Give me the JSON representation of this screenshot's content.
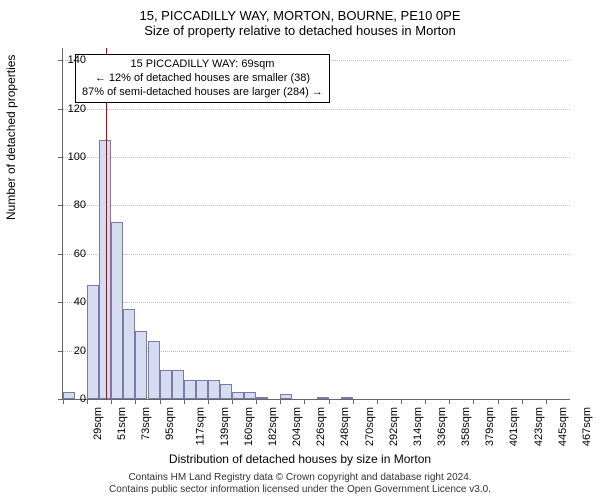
{
  "chart": {
    "type": "histogram",
    "title_main": "15, PICCADILLY WAY, MORTON, BOURNE, PE10 0PE",
    "title_sub": "Size of property relative to detached houses in Morton",
    "y_axis_title": "Number of detached properties",
    "x_axis_title": "Distribution of detached houses by size in Morton",
    "ylim": [
      0,
      145
    ],
    "yticks": [
      0,
      20,
      40,
      60,
      80,
      100,
      120,
      140
    ],
    "xtick_labels": [
      "29sqm",
      "51sqm",
      "73sqm",
      "95sqm",
      "117sqm",
      "139sqm",
      "160sqm",
      "182sqm",
      "204sqm",
      "226sqm",
      "248sqm",
      "270sqm",
      "292sqm",
      "314sqm",
      "336sqm",
      "358sqm",
      "379sqm",
      "401sqm",
      "423sqm",
      "445sqm",
      "467sqm"
    ],
    "bar_values": [
      3,
      0,
      47,
      107,
      73,
      37,
      28,
      24,
      12,
      12,
      8,
      8,
      8,
      6,
      3,
      3,
      1,
      0,
      2,
      0,
      0,
      1,
      0,
      1,
      0,
      0,
      0,
      0,
      0,
      0,
      0,
      0,
      0,
      0,
      0,
      0,
      0,
      0,
      0,
      0,
      0,
      0
    ],
    "bar_fill": "#d6dcf0",
    "bar_border": "#7a7aa8",
    "marker_bin_index": 3.6,
    "marker_color": "#cc0000",
    "annotation": {
      "line1": "15 PICCADILLY WAY: 69sqm",
      "line2": "← 12% of detached houses are smaller (38)",
      "line3": "87% of semi-detached houses are larger (284) →"
    },
    "footer_line1": "Contains HM Land Registry data © Crown copyright and database right 2024.",
    "footer_line2": "Contains public sector information licensed under the Open Government Licence v3.0.",
    "background_color": "#ffffff",
    "grid_color": "#bbbbbb",
    "axis_color": "#666666",
    "title_fontsize": 13,
    "label_fontsize": 11,
    "axis_title_fontsize": 12,
    "footer_fontsize": 10
  }
}
